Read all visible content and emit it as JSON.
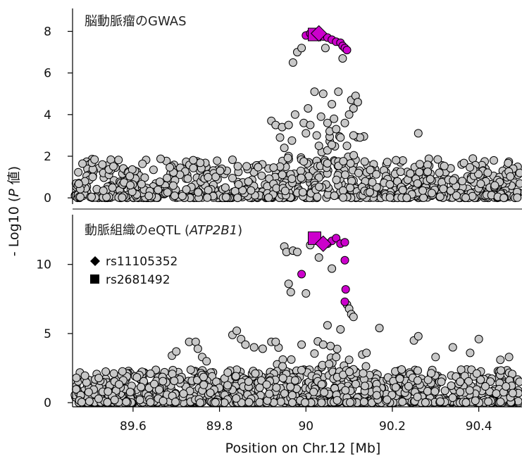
{
  "chart_data": {
    "type": "scatter",
    "xlabel": "Position on Chr.12 [Mb]",
    "ylabel_parts": {
      "prefix": "- Log10 (",
      "italic": "P",
      "suffix": " 値)"
    },
    "x_ticks": [
      "89.6",
      "89.8",
      "90",
      "90.2",
      "90.4"
    ],
    "x_tick_values": [
      89.6,
      89.8,
      90.0,
      90.2,
      90.4
    ],
    "xlim": [
      89.46,
      90.5
    ],
    "colors": {
      "background_points": "#c8c8c8",
      "highlight_points": "#cc00cc",
      "point_outline": "#000000"
    },
    "legend_position": "left, inside lower panel",
    "panels": [
      {
        "title_parts": {
          "prefix": "脳動脈瘤のGWAS",
          "italic": "",
          "suffix": ""
        },
        "ylim": [
          -0.3,
          9.1
        ],
        "y_ticks": [
          "0",
          "2",
          "4",
          "6",
          "8"
        ],
        "y_tick_values": [
          0,
          2,
          4,
          6,
          8
        ],
        "highlight": [
          {
            "x": 90.0,
            "y": 7.8
          },
          {
            "x": 90.01,
            "y": 7.9
          },
          {
            "x": 90.015,
            "y": 7.8
          },
          {
            "x": 90.04,
            "y": 7.75
          },
          {
            "x": 90.05,
            "y": 7.7
          },
          {
            "x": 90.06,
            "y": 7.6
          },
          {
            "x": 90.07,
            "y": 7.5
          },
          {
            "x": 90.08,
            "y": 7.45
          },
          {
            "x": 90.085,
            "y": 7.3
          },
          {
            "x": 90.09,
            "y": 7.2
          },
          {
            "x": 90.095,
            "y": 7.1
          }
        ],
        "snp_diamond": {
          "x": 90.03,
          "y": 7.9
        },
        "snp_square": {
          "x": 90.02,
          "y": 7.85
        },
        "signal": [
          {
            "x": 89.92,
            "y": 3.7
          },
          {
            "x": 89.93,
            "y": 3.5
          },
          {
            "x": 89.94,
            "y": 2.9
          },
          {
            "x": 89.945,
            "y": 3.4
          },
          {
            "x": 89.95,
            "y": 2.4
          },
          {
            "x": 89.96,
            "y": 3.5
          },
          {
            "x": 89.97,
            "y": 6.5
          },
          {
            "x": 89.975,
            "y": 4.0
          },
          {
            "x": 89.98,
            "y": 7.0
          },
          {
            "x": 89.99,
            "y": 7.2
          },
          {
            "x": 89.995,
            "y": 3.6
          },
          {
            "x": 90.0,
            "y": 3.1
          },
          {
            "x": 90.005,
            "y": 4.3
          },
          {
            "x": 90.01,
            "y": 3.5
          },
          {
            "x": 90.02,
            "y": 5.1
          },
          {
            "x": 90.025,
            "y": 3.0
          },
          {
            "x": 90.03,
            "y": 2.5
          },
          {
            "x": 90.04,
            "y": 5.0
          },
          {
            "x": 90.045,
            "y": 7.2
          },
          {
            "x": 90.05,
            "y": 3.6
          },
          {
            "x": 90.055,
            "y": 3.2
          },
          {
            "x": 90.06,
            "y": 4.5
          },
          {
            "x": 90.065,
            "y": 3.8
          },
          {
            "x": 90.07,
            "y": 3.3
          },
          {
            "x": 90.075,
            "y": 5.1
          },
          {
            "x": 90.08,
            "y": 2.9
          },
          {
            "x": 90.085,
            "y": 6.7
          },
          {
            "x": 90.09,
            "y": 3.6
          },
          {
            "x": 90.095,
            "y": 2.5
          },
          {
            "x": 90.1,
            "y": 4.0
          },
          {
            "x": 90.105,
            "y": 4.7
          },
          {
            "x": 90.11,
            "y": 4.3
          },
          {
            "x": 90.115,
            "y": 4.9
          },
          {
            "x": 90.12,
            "y": 4.6
          },
          {
            "x": 90.125,
            "y": 2.9
          },
          {
            "x": 90.26,
            "y": 3.1
          },
          {
            "x": 90.11,
            "y": 3.0
          },
          {
            "x": 90.035,
            "y": 3.9
          }
        ],
        "baseline_max": 1.9
      },
      {
        "title_parts": {
          "prefix": "動脈組織のeQTL (",
          "italic": "ATP2B1",
          "suffix": ")"
        },
        "ylim": [
          -0.3,
          13.6
        ],
        "y_ticks": [
          "0",
          "5",
          "10"
        ],
        "y_tick_values": [
          0,
          5,
          10
        ],
        "highlight": [
          {
            "x": 89.99,
            "y": 9.3
          },
          {
            "x": 90.02,
            "y": 11.8
          },
          {
            "x": 90.04,
            "y": 11.6
          },
          {
            "x": 90.05,
            "y": 11.5
          },
          {
            "x": 90.06,
            "y": 11.7
          },
          {
            "x": 90.07,
            "y": 11.9
          },
          {
            "x": 90.08,
            "y": 11.5
          },
          {
            "x": 90.09,
            "y": 11.6
          },
          {
            "x": 90.09,
            "y": 10.3
          },
          {
            "x": 90.092,
            "y": 8.2
          },
          {
            "x": 90.09,
            "y": 7.3
          }
        ],
        "snp_diamond": {
          "x": 90.04,
          "y": 11.5
        },
        "snp_square": {
          "x": 90.02,
          "y": 11.9
        },
        "signal": [
          {
            "x": 89.95,
            "y": 11.3
          },
          {
            "x": 89.955,
            "y": 10.9
          },
          {
            "x": 89.96,
            "y": 8.6
          },
          {
            "x": 89.965,
            "y": 8.0
          },
          {
            "x": 89.97,
            "y": 11.0
          },
          {
            "x": 89.98,
            "y": 10.9
          },
          {
            "x": 89.99,
            "y": 4.2
          },
          {
            "x": 90.0,
            "y": 7.9
          },
          {
            "x": 90.01,
            "y": 11.4
          },
          {
            "x": 90.03,
            "y": 10.5
          },
          {
            "x": 90.04,
            "y": 4.2
          },
          {
            "x": 90.05,
            "y": 5.6
          },
          {
            "x": 90.06,
            "y": 9.7
          },
          {
            "x": 90.07,
            "y": 3.3
          },
          {
            "x": 90.08,
            "y": 5.3
          },
          {
            "x": 90.095,
            "y": 7.1
          },
          {
            "x": 90.1,
            "y": 6.8
          },
          {
            "x": 90.105,
            "y": 6.4
          },
          {
            "x": 90.11,
            "y": 6.2
          },
          {
            "x": 90.1,
            "y": 3.1
          },
          {
            "x": 90.17,
            "y": 5.4
          },
          {
            "x": 90.14,
            "y": 3.6
          },
          {
            "x": 89.69,
            "y": 3.4
          },
          {
            "x": 89.7,
            "y": 3.7
          },
          {
            "x": 89.73,
            "y": 4.4
          },
          {
            "x": 89.745,
            "y": 4.4
          },
          {
            "x": 89.75,
            "y": 3.9
          },
          {
            "x": 89.76,
            "y": 3.3
          },
          {
            "x": 89.77,
            "y": 3.0
          },
          {
            "x": 89.83,
            "y": 4.9
          },
          {
            "x": 89.84,
            "y": 5.2
          },
          {
            "x": 89.85,
            "y": 4.6
          },
          {
            "x": 89.86,
            "y": 4.2
          },
          {
            "x": 89.88,
            "y": 4.0
          },
          {
            "x": 89.9,
            "y": 3.9
          },
          {
            "x": 89.92,
            "y": 4.4
          },
          {
            "x": 89.93,
            "y": 4.4
          },
          {
            "x": 90.25,
            "y": 4.5
          },
          {
            "x": 90.26,
            "y": 4.8
          },
          {
            "x": 90.4,
            "y": 4.6
          },
          {
            "x": 90.34,
            "y": 4.0
          },
          {
            "x": 90.38,
            "y": 3.6
          },
          {
            "x": 90.45,
            "y": 3.1
          },
          {
            "x": 90.47,
            "y": 3.3
          },
          {
            "x": 90.3,
            "y": 3.3
          }
        ],
        "baseline_max": 2.4
      }
    ],
    "legend": [
      {
        "marker": "diamond",
        "label": "rs11105352"
      },
      {
        "marker": "square",
        "label": "rs2681492"
      }
    ]
  }
}
